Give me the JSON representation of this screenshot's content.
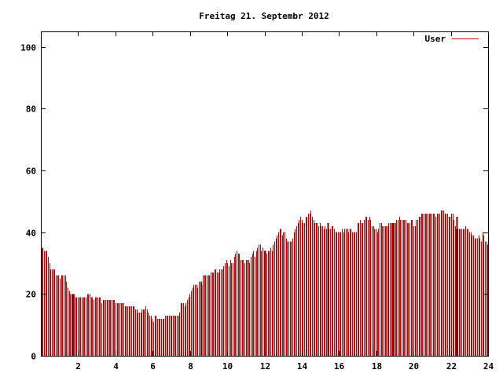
{
  "chart_data": {
    "type": "bar",
    "title": "Freitag 21. Septembr 2012",
    "xlabel": "",
    "ylabel": "",
    "xlim": [
      0,
      24
    ],
    "ylim": [
      0,
      105
    ],
    "x_ticks": [
      "2",
      "4",
      "6",
      "8",
      "10",
      "12",
      "14",
      "16",
      "18",
      "20",
      "22",
      "24"
    ],
    "y_ticks": [
      "0",
      "20",
      "40",
      "60",
      "80",
      "100"
    ],
    "legend_position": "top-right",
    "series": [
      {
        "name": "User",
        "color": "#cc0000",
        "values": [
          35,
          35,
          34,
          34,
          34,
          32,
          30,
          28,
          28,
          28,
          28,
          26,
          26,
          26,
          25,
          26,
          26,
          26,
          26,
          24,
          22,
          21,
          20,
          20,
          20,
          20,
          19,
          19,
          19,
          19,
          19,
          19,
          19,
          19,
          19,
          20,
          20,
          20,
          19,
          19,
          18,
          19,
          19,
          19,
          19,
          19,
          17,
          18,
          18,
          18,
          18,
          18,
          18,
          18,
          18,
          18,
          18,
          17,
          17,
          17,
          17,
          17,
          17,
          17,
          16,
          16,
          16,
          16,
          16,
          16,
          16,
          16,
          15,
          15,
          14,
          14,
          14,
          15,
          15,
          15,
          16,
          15,
          14,
          13,
          13,
          12,
          11,
          13,
          13,
          12,
          12,
          12,
          12,
          12,
          12,
          13,
          13,
          13,
          13,
          13,
          13,
          13,
          13,
          13,
          13,
          13,
          14,
          17,
          17,
          17,
          16,
          17,
          18,
          19,
          20,
          21,
          22,
          23,
          23,
          23,
          22,
          24,
          24,
          24,
          26,
          26,
          26,
          26,
          26,
          26,
          27,
          27,
          27,
          28,
          28,
          27,
          27,
          28,
          28,
          28,
          29,
          30,
          31,
          30,
          29,
          31,
          30,
          30,
          32,
          33,
          34,
          33,
          33,
          31,
          31,
          31,
          30,
          31,
          31,
          31,
          30,
          32,
          33,
          34,
          32,
          34,
          35,
          36,
          36,
          34,
          35,
          34,
          33,
          33,
          34,
          34,
          35,
          34,
          36,
          37,
          38,
          39,
          40,
          41,
          41,
          39,
          40,
          40,
          38,
          37,
          37,
          37,
          37,
          38,
          40,
          41,
          42,
          43,
          44,
          45,
          44,
          43,
          43,
          45,
          45,
          46,
          46,
          47,
          45,
          44,
          43,
          43,
          43,
          42,
          43,
          42,
          42,
          41,
          42,
          41,
          41,
          41,
          41,
          42,
          42,
          41,
          40,
          40,
          40,
          40,
          40,
          41,
          40,
          41,
          41,
          41,
          40,
          41,
          41,
          40,
          40,
          40,
          40,
          43,
          43,
          44,
          43,
          43,
          44,
          45,
          45,
          44,
          45,
          44,
          42,
          42,
          41,
          41,
          40,
          41,
          43,
          43,
          42,
          42,
          42,
          42,
          42,
          43,
          43,
          43,
          43,
          43,
          43,
          44,
          44,
          45,
          44,
          44,
          44,
          44,
          44,
          43,
          43,
          43,
          44,
          44,
          42,
          42,
          44,
          44,
          45,
          45,
          46,
          46,
          46,
          46,
          46,
          46,
          46,
          46,
          46,
          46,
          46,
          45,
          46,
          46,
          46,
          47,
          47,
          47,
          46,
          46,
          46,
          45,
          45,
          46,
          46,
          44,
          42,
          41,
          41,
          41,
          41,
          41,
          41,
          41,
          42,
          41,
          41,
          40,
          40,
          39,
          39,
          38,
          38,
          38,
          39,
          38,
          37,
          40,
          39,
          37,
          37,
          36
        ]
      }
    ],
    "emphasized_bars": [
      {
        "x": 1.7,
        "value": 20
      },
      {
        "x": 8.6,
        "value": 23
      },
      {
        "x": 12.0,
        "value": 34
      },
      {
        "x": 15.4,
        "value": 43
      },
      {
        "x": 18.9,
        "value": 43
      },
      {
        "x": 22.3,
        "value": 45
      }
    ]
  }
}
